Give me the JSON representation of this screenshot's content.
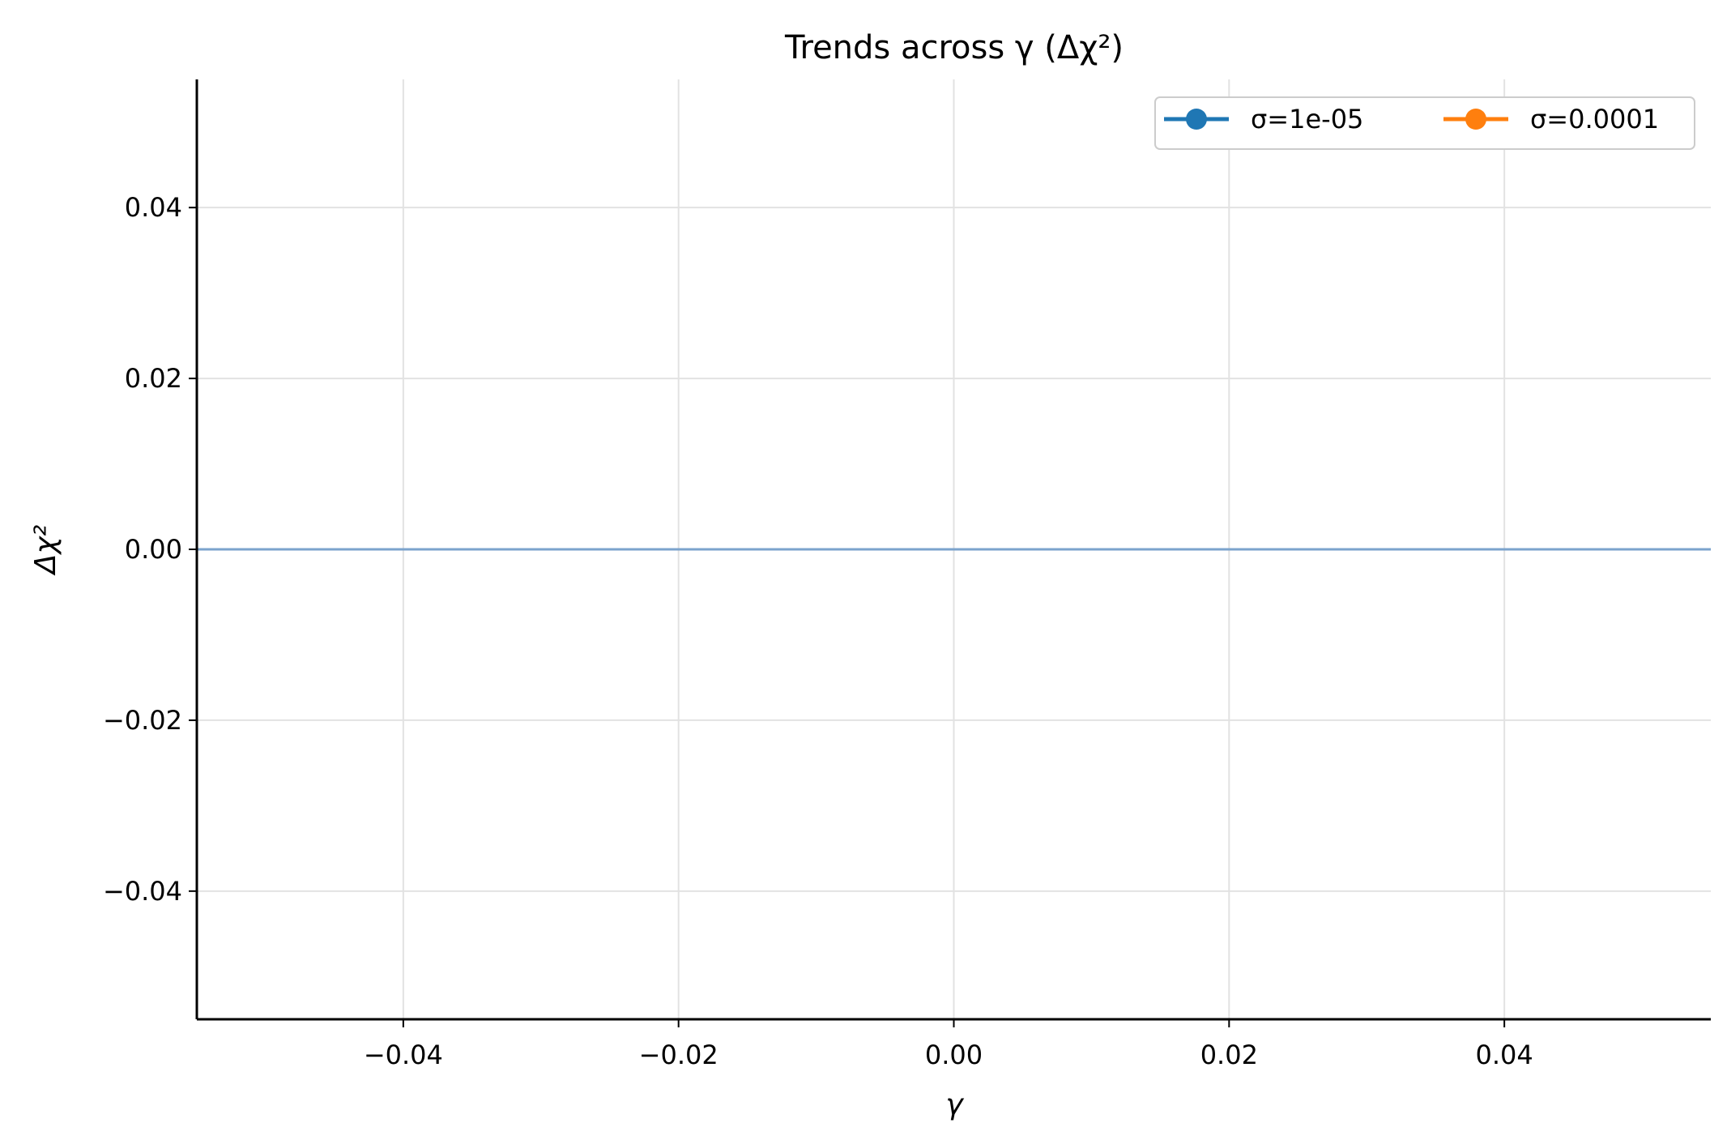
{
  "chart_data": {
    "type": "line",
    "title": "Trends across γ (Δχ²)",
    "xlabel": "γ",
    "ylabel": "Δχ²",
    "xlim": [
      -0.055,
      0.055
    ],
    "ylim": [
      -0.055,
      0.055
    ],
    "x_ticks": [
      -0.04,
      -0.02,
      0.0,
      0.02,
      0.04
    ],
    "x_tick_labels": [
      "−0.04",
      "−0.02",
      "0.00",
      "0.02",
      "0.04"
    ],
    "y_ticks": [
      -0.04,
      -0.02,
      0.0,
      0.02,
      0.04
    ],
    "y_tick_labels": [
      "−0.04",
      "−0.02",
      "0.00",
      "0.02",
      "0.04"
    ],
    "grid": true,
    "legend_position": "top-right",
    "reference_line": {
      "y": 0.0,
      "color": "#7ba3cc"
    },
    "series": [
      {
        "name": "σ=1e-05",
        "color": "#1f77b4",
        "marker": "circle",
        "x": [],
        "y": []
      },
      {
        "name": "σ=0.0001",
        "color": "#ff7f0e",
        "marker": "circle",
        "x": [],
        "y": []
      }
    ]
  }
}
